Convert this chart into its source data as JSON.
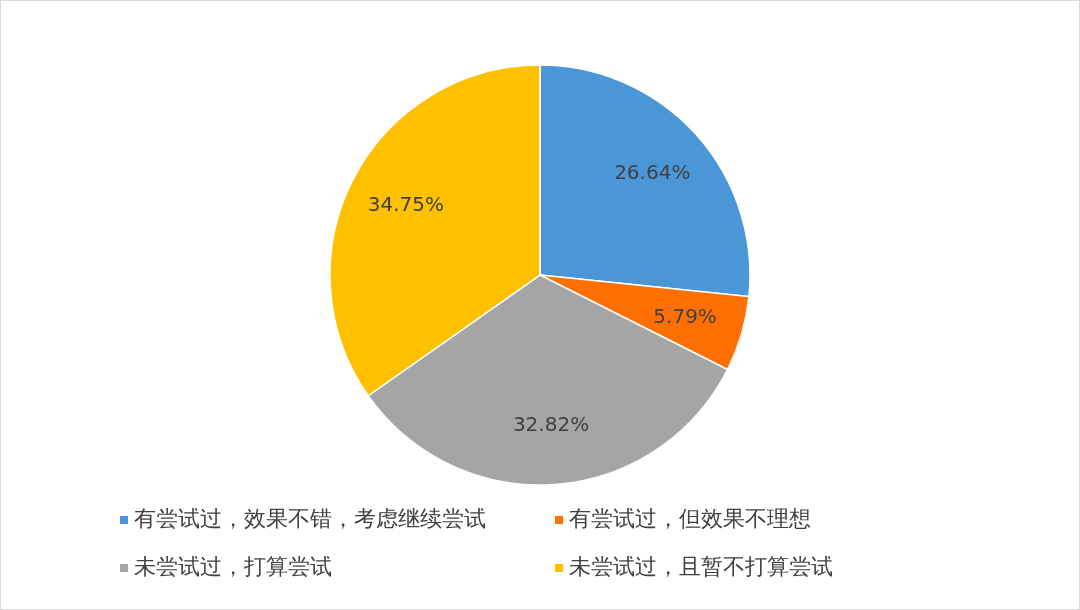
{
  "chart_data": {
    "type": "pie",
    "categories": [
      "有尝试过，效果不错，考虑继续尝试",
      "有尝试过，但效果不理想",
      "未尝试过，打算尝试",
      "未尝试过，且暂不打算尝试"
    ],
    "values": [
      26.64,
      5.79,
      32.82,
      34.75
    ],
    "colors": [
      "#4a96d6",
      "#ff7000",
      "#a5a5a5",
      "#ffc000"
    ],
    "value_labels": [
      "26.64%",
      "5.79%",
      "32.82%",
      "34.75%"
    ],
    "legend": "bottom"
  }
}
